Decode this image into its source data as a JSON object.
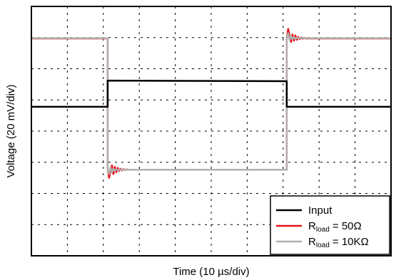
{
  "chart_data": {
    "type": "line",
    "title": "",
    "xlabel": "Time (10 µs/div)",
    "ylabel": "Voltage (20 mV/div)",
    "xlim": [
      0,
      10
    ],
    "ylim": [
      0,
      8
    ],
    "grid": true,
    "legend_position": "bottom-right",
    "series": [
      {
        "name": "Input",
        "legend_main": "Input",
        "legend_sub": "",
        "legend_suffix": "",
        "color": "#000000",
        "x": [
          0,
          2.12,
          2.12,
          7.1,
          7.1,
          10
        ],
        "y": [
          4.78,
          4.78,
          5.62,
          5.6,
          4.78,
          4.78
        ]
      },
      {
        "name": "Rload = 50Ω",
        "legend_main": "R",
        "legend_sub": "load",
        "legend_suffix": " = 50Ω",
        "color": "#e8141c",
        "x": [
          0,
          2.12,
          2.12,
          2.16,
          2.2,
          2.24,
          2.28,
          2.32,
          2.36,
          2.4,
          2.44,
          2.48,
          2.52,
          2.56,
          2.6,
          2.64,
          2.7,
          7.1,
          7.1,
          7.14,
          7.18,
          7.22,
          7.26,
          7.3,
          7.34,
          7.38,
          7.42,
          7.46,
          7.5,
          7.54,
          7.58,
          7.62,
          7.68,
          10
        ],
        "y": [
          6.97,
          6.97,
          2.78,
          2.5,
          2.72,
          2.9,
          2.62,
          2.85,
          2.68,
          2.82,
          2.72,
          2.79,
          2.74,
          2.78,
          2.75,
          2.77,
          2.76,
          2.76,
          6.97,
          7.28,
          7.05,
          6.86,
          7.1,
          6.9,
          7.07,
          6.93,
          7.02,
          6.95,
          7.0,
          6.96,
          6.99,
          6.97,
          6.97,
          6.97
        ]
      },
      {
        "name": "Rload = 10KΩ",
        "legend_main": "R",
        "legend_sub": "load",
        "legend_suffix": " = 10KΩ",
        "color": "#b0b0b0",
        "x": [
          0,
          2.12,
          2.12,
          2.16,
          2.2,
          2.24,
          2.28,
          2.32,
          2.36,
          2.4,
          2.48,
          7.1,
          7.1,
          7.14,
          7.18,
          7.22,
          7.26,
          7.3,
          7.34,
          7.38,
          7.48,
          10
        ],
        "y": [
          6.98,
          6.98,
          2.76,
          2.62,
          2.84,
          2.68,
          2.8,
          2.72,
          2.78,
          2.75,
          2.76,
          2.76,
          6.98,
          7.14,
          6.92,
          7.06,
          6.94,
          7.02,
          6.96,
          6.99,
          6.98,
          6.98
        ]
      }
    ]
  }
}
